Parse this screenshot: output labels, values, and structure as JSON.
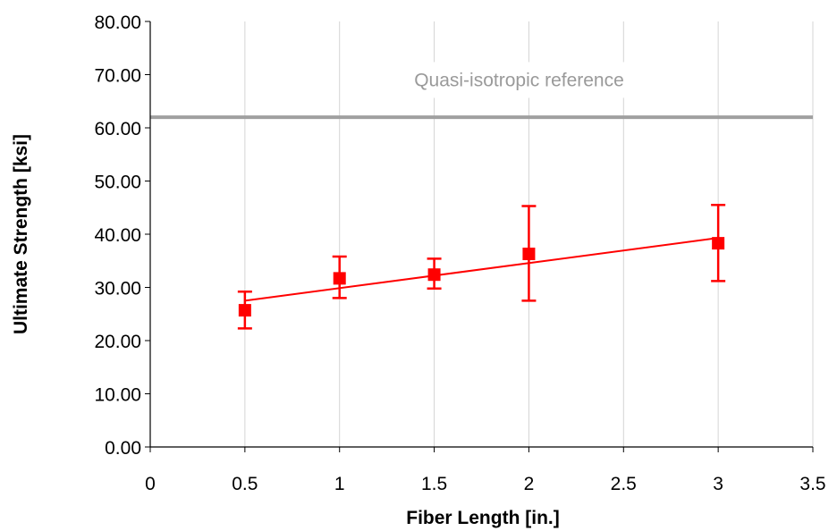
{
  "chart_data": {
    "type": "scatter",
    "xlabel": "Fiber Length [in.]",
    "ylabel": "Ultimate Strength [ksi]",
    "xlim": [
      0,
      3.5
    ],
    "ylim": [
      0,
      80
    ],
    "x_ticks": [
      "0",
      "0.5",
      "1",
      "1.5",
      "2",
      "2.5",
      "3",
      "3.5"
    ],
    "y_ticks": [
      "0.00",
      "10.00",
      "20.00",
      "30.00",
      "40.00",
      "50.00",
      "60.00",
      "70.00",
      "80.00"
    ],
    "grid": "vertical",
    "series": [
      {
        "marker": "square",
        "color": "#ff0000",
        "points": [
          {
            "x": 0.5,
            "y": 25.7,
            "err_low": 22.3,
            "err_high": 29.2
          },
          {
            "x": 1.0,
            "y": 31.7,
            "err_low": 28.0,
            "err_high": 35.8
          },
          {
            "x": 1.5,
            "y": 32.4,
            "err_low": 29.8,
            "err_high": 35.4
          },
          {
            "x": 2.0,
            "y": 36.3,
            "err_low": 27.5,
            "err_high": 45.3
          },
          {
            "x": 3.0,
            "y": 38.3,
            "err_low": 31.2,
            "err_high": 45.5
          }
        ]
      }
    ],
    "trendline": {
      "type": "linear",
      "color": "#ff0000",
      "x": [
        0.5,
        3.0
      ],
      "y": [
        27.5,
        39.3
      ]
    },
    "reference_line": {
      "label": "Quasi-isotropic reference",
      "y": 62.0,
      "color": "#a0a0a0"
    }
  }
}
